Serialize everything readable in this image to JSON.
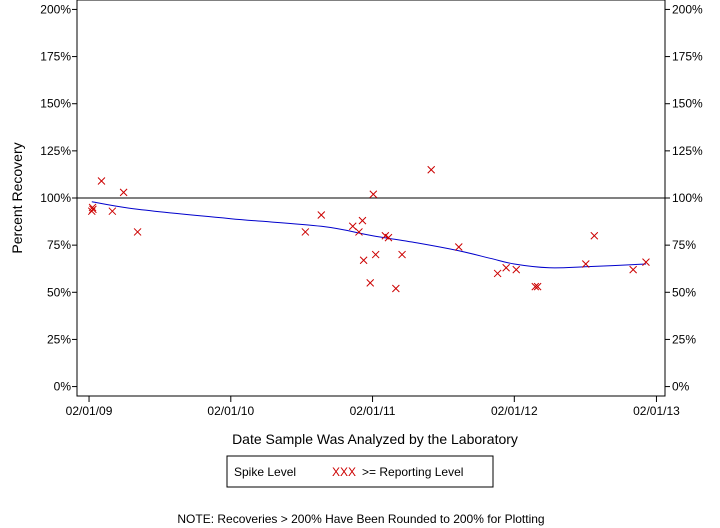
{
  "chart_data": {
    "type": "scatter",
    "title": "",
    "xlabel": "Date Sample Was Analyzed by the Laboratory",
    "ylabel": "Percent Recovery",
    "x_ticks": [
      "02/01/09",
      "02/01/10",
      "02/01/11",
      "02/01/12",
      "02/01/13"
    ],
    "y_ticks": [
      "0%",
      "25%",
      "50%",
      "75%",
      "100%",
      "125%",
      "150%",
      "175%",
      "200%"
    ],
    "xlim": [
      "2009-01-01",
      "2013-02-23"
    ],
    "ylim": [
      -5,
      205
    ],
    "reference_line": 100,
    "legend": {
      "placement": "bottom",
      "entries": [
        {
          "label": "Spike Level",
          "marker": ""
        },
        {
          "label": ">= Reporting Level",
          "marker": "XXX"
        }
      ]
    },
    "note": "NOTE: Recoveries > 200% Have Been Rounded to 200% for Plotting",
    "series": [
      {
        "kind": "points",
        "marker": "x",
        "color": "#cc0000",
        "points": [
          {
            "x": "2009-02-08",
            "y": 93
          },
          {
            "x": "2009-02-10",
            "y": 95
          },
          {
            "x": "2009-02-11",
            "y": 94
          },
          {
            "x": "2009-03-05",
            "y": 109
          },
          {
            "x": "2009-04-02",
            "y": 93
          },
          {
            "x": "2009-05-01",
            "y": 103
          },
          {
            "x": "2009-06-06",
            "y": 82
          },
          {
            "x": "2010-08-12",
            "y": 82
          },
          {
            "x": "2010-09-22",
            "y": 91
          },
          {
            "x": "2010-12-12",
            "y": 85
          },
          {
            "x": "2010-12-28",
            "y": 82
          },
          {
            "x": "2011-01-06",
            "y": 88
          },
          {
            "x": "2011-01-09",
            "y": 67
          },
          {
            "x": "2011-01-26",
            "y": 55
          },
          {
            "x": "2011-02-03",
            "y": 102
          },
          {
            "x": "2011-02-09",
            "y": 70
          },
          {
            "x": "2011-03-06",
            "y": 80
          },
          {
            "x": "2011-03-14",
            "y": 79
          },
          {
            "x": "2011-04-02",
            "y": 52
          },
          {
            "x": "2011-04-18",
            "y": 70
          },
          {
            "x": "2011-07-02",
            "y": 115
          },
          {
            "x": "2011-09-11",
            "y": 74
          },
          {
            "x": "2011-12-20",
            "y": 60
          },
          {
            "x": "2012-01-11",
            "y": 63
          },
          {
            "x": "2012-02-06",
            "y": 62
          },
          {
            "x": "2012-03-26",
            "y": 53
          },
          {
            "x": "2012-04-01",
            "y": 53
          },
          {
            "x": "2012-08-03",
            "y": 65
          },
          {
            "x": "2012-08-25",
            "y": 80
          },
          {
            "x": "2012-12-03",
            "y": 62
          },
          {
            "x": "2013-01-05",
            "y": 66
          }
        ]
      },
      {
        "kind": "trend",
        "color": "#0000cc",
        "points": [
          {
            "x": "2009-02-08",
            "y": 98
          },
          {
            "x": "2009-06-06",
            "y": 94
          },
          {
            "x": "2010-02-01",
            "y": 89
          },
          {
            "x": "2010-09-22",
            "y": 85
          },
          {
            "x": "2011-02-01",
            "y": 80
          },
          {
            "x": "2011-06-01",
            "y": 76
          },
          {
            "x": "2011-09-11",
            "y": 72
          },
          {
            "x": "2011-12-01",
            "y": 68
          },
          {
            "x": "2012-02-01",
            "y": 65
          },
          {
            "x": "2012-05-01",
            "y": 63
          },
          {
            "x": "2012-08-01",
            "y": 63.5
          },
          {
            "x": "2013-01-05",
            "y": 65
          }
        ]
      }
    ]
  }
}
